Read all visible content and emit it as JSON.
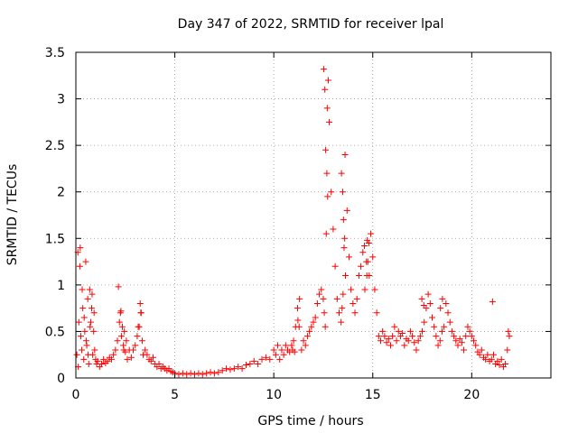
{
  "chart_data": {
    "type": "scatter",
    "title": "Day 347 of 2022, SRMTID for receiver lpal",
    "xlabel": "GPS time / hours",
    "ylabel": "SRMTID / TECUs",
    "xlim": [
      0,
      24
    ],
    "ylim": [
      0,
      3.5
    ],
    "xticks": [
      0,
      5,
      10,
      15,
      20
    ],
    "xtick_labels": [
      "0",
      "5",
      "10",
      "15",
      "20"
    ],
    "yticks": [
      0,
      0.5,
      1,
      1.5,
      2,
      2.5,
      3,
      3.5
    ],
    "ytick_labels": [
      "0",
      "0.5",
      "1",
      "1.5",
      "2",
      "2.5",
      "3",
      "3.5"
    ],
    "grid": true,
    "marker": "+",
    "color": "#ff0000",
    "series": [
      {
        "name": "SRMTID",
        "x": [
          0.05,
          0.1,
          0.15,
          0.2,
          0.25,
          0.3,
          0.35,
          0.4,
          0.45,
          0.5,
          0.55,
          0.6,
          0.65,
          0.7,
          0.75,
          0.8,
          0.85,
          0.9,
          0.95,
          1.0,
          1.05,
          1.1,
          1.2,
          1.3,
          1.4,
          1.5,
          1.6,
          1.7,
          1.8,
          1.9,
          2.0,
          2.1,
          2.2,
          2.25,
          2.3,
          2.35,
          2.4,
          2.45,
          2.5,
          2.55,
          2.6,
          2.7,
          2.8,
          2.9,
          3.0,
          3.1,
          3.2,
          3.25,
          3.3,
          3.35,
          3.4,
          3.5,
          3.6,
          3.7,
          3.8,
          3.9,
          4.0,
          4.1,
          4.2,
          4.3,
          4.4,
          4.5,
          4.6,
          4.7,
          4.8,
          4.9,
          5.0,
          5.2,
          5.4,
          5.6,
          5.8,
          6.0,
          6.2,
          6.4,
          6.6,
          6.8,
          7.0,
          7.2,
          7.4,
          7.6,
          7.8,
          8.0,
          8.2,
          8.4,
          8.6,
          8.8,
          9.0,
          9.2,
          9.4,
          9.6,
          9.8,
          10.0,
          10.1,
          10.2,
          10.3,
          10.4,
          10.5,
          10.6,
          10.7,
          10.8,
          10.9,
          11.0,
          11.1,
          11.2,
          11.3,
          11.4,
          11.5,
          11.6,
          11.7,
          11.8,
          11.9,
          12.0,
          12.1,
          12.2,
          12.3,
          12.4,
          12.5,
          12.55,
          12.6,
          12.65,
          12.7,
          12.75,
          12.8,
          12.9,
          13.0,
          13.1,
          13.2,
          13.3,
          13.4,
          13.45,
          13.5,
          13.55,
          13.6,
          13.7,
          13.8,
          13.9,
          14.0,
          14.1,
          14.2,
          14.3,
          14.4,
          14.5,
          14.6,
          14.7,
          14.75,
          14.8,
          14.9,
          15.0,
          15.1,
          15.2,
          15.3,
          15.4,
          15.5,
          15.6,
          15.7,
          15.8,
          15.9,
          16.0,
          16.1,
          16.2,
          16.3,
          16.4,
          16.5,
          16.6,
          16.7,
          16.8,
          16.9,
          17.0,
          17.1,
          17.2,
          17.3,
          17.4,
          17.5,
          17.6,
          17.7,
          17.8,
          17.9,
          18.0,
          18.1,
          18.2,
          18.3,
          18.4,
          18.5,
          18.6,
          18.7,
          18.8,
          18.9,
          19.0,
          19.1,
          19.2,
          19.3,
          19.4,
          19.5,
          19.6,
          19.7,
          19.8,
          19.9,
          20.0,
          20.1,
          20.2,
          20.3,
          20.4,
          20.5,
          20.6,
          20.7,
          20.8,
          20.9,
          21.0,
          21.05,
          21.1,
          21.2,
          21.3,
          21.4,
          21.5,
          21.6,
          21.7,
          21.8,
          21.85,
          21.9,
          0.12,
          0.22,
          0.32,
          0.42,
          0.52,
          0.62,
          0.72,
          0.82,
          0.92,
          2.15,
          2.28,
          2.42,
          3.15,
          3.28,
          12.52,
          12.58,
          12.62,
          12.68,
          12.72,
          13.42,
          13.48,
          13.52,
          13.58,
          13.62,
          14.58,
          14.68,
          14.72,
          14.82,
          17.48,
          17.58,
          18.42,
          18.52,
          11.22,
          11.28,
          10.95,
          11.05
        ],
        "y": [
          0.25,
          1.35,
          0.6,
          1.2,
          0.45,
          0.3,
          0.75,
          0.2,
          0.5,
          1.25,
          0.35,
          0.85,
          0.15,
          0.95,
          0.6,
          0.75,
          0.25,
          0.5,
          0.3,
          0.2,
          0.15,
          0.18,
          0.12,
          0.15,
          0.2,
          0.16,
          0.18,
          0.22,
          0.2,
          0.25,
          0.3,
          0.4,
          0.6,
          0.7,
          0.45,
          0.55,
          0.35,
          0.5,
          0.28,
          0.4,
          0.2,
          0.3,
          0.22,
          0.3,
          0.35,
          0.45,
          0.55,
          0.8,
          0.7,
          0.4,
          0.25,
          0.3,
          0.25,
          0.2,
          0.18,
          0.22,
          0.15,
          0.12,
          0.15,
          0.1,
          0.12,
          0.1,
          0.08,
          0.1,
          0.07,
          0.06,
          0.05,
          0.04,
          0.05,
          0.04,
          0.05,
          0.04,
          0.05,
          0.04,
          0.05,
          0.06,
          0.05,
          0.06,
          0.08,
          0.1,
          0.09,
          0.1,
          0.12,
          0.1,
          0.14,
          0.15,
          0.18,
          0.15,
          0.2,
          0.22,
          0.2,
          0.3,
          0.25,
          0.35,
          0.2,
          0.3,
          0.25,
          0.35,
          0.3,
          0.28,
          0.35,
          0.4,
          0.55,
          0.75,
          0.85,
          0.3,
          0.4,
          0.35,
          0.45,
          0.5,
          0.55,
          0.6,
          0.65,
          0.8,
          0.9,
          0.95,
          0.85,
          0.7,
          0.55,
          1.55,
          2.9,
          3.2,
          2.75,
          2.0,
          1.6,
          1.2,
          0.85,
          0.7,
          0.6,
          0.75,
          0.9,
          1.4,
          2.4,
          1.8,
          1.3,
          0.95,
          0.8,
          0.7,
          0.85,
          1.1,
          1.2,
          1.35,
          0.95,
          1.1,
          1.25,
          1.45,
          1.55,
          1.3,
          0.95,
          0.7,
          0.45,
          0.4,
          0.5,
          0.45,
          0.38,
          0.42,
          0.35,
          0.45,
          0.55,
          0.4,
          0.5,
          0.45,
          0.48,
          0.35,
          0.42,
          0.4,
          0.5,
          0.45,
          0.38,
          0.3,
          0.4,
          0.45,
          0.5,
          0.6,
          0.75,
          0.9,
          0.8,
          0.65,
          0.55,
          0.45,
          0.35,
          0.4,
          0.5,
          0.55,
          0.8,
          0.7,
          0.6,
          0.5,
          0.45,
          0.4,
          0.35,
          0.42,
          0.38,
          0.3,
          0.45,
          0.55,
          0.5,
          0.45,
          0.4,
          0.35,
          0.28,
          0.25,
          0.3,
          0.22,
          0.2,
          0.25,
          0.18,
          0.2,
          0.82,
          0.25,
          0.15,
          0.18,
          0.14,
          0.2,
          0.12,
          0.15,
          0.3,
          0.5,
          0.45,
          0.12,
          1.4,
          0.95,
          0.65,
          0.4,
          0.25,
          0.55,
          0.9,
          0.7,
          0.98,
          0.72,
          0.3,
          0.55,
          0.7,
          3.32,
          3.1,
          2.45,
          2.2,
          1.95,
          2.2,
          2.0,
          1.7,
          1.5,
          1.1,
          1.42,
          1.25,
          1.48,
          1.1,
          0.85,
          0.78,
          0.75,
          0.85,
          0.62,
          0.55,
          0.3,
          0.28
        ]
      }
    ]
  }
}
